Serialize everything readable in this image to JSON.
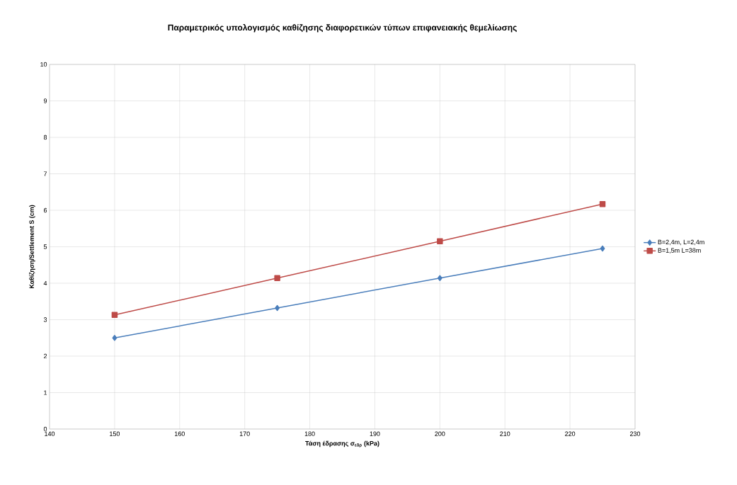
{
  "chart_data": {
    "type": "line",
    "title": "Παραμετρικός υπολογισμός καθίζησης διαφορετικών τύπων επιφανειακής θεμελίωσης",
    "xlabel": "Τάση έδρασης σ$_{εδρ}$ (kPa)",
    "ylabel": "Καθίζηση/Settlement S (cm)",
    "x": [
      150,
      175,
      200,
      225
    ],
    "series": [
      {
        "name": "B=2,4m, L=2,4m",
        "color": "#4a7ebb",
        "marker": "diamond",
        "values": [
          2.5,
          3.32,
          4.14,
          4.95
        ]
      },
      {
        "name": "B=1,5m L=38m",
        "color": "#be4b48",
        "marker": "square",
        "values": [
          3.13,
          4.14,
          5.15,
          6.17
        ]
      }
    ],
    "xlim": [
      140,
      230
    ],
    "xticks": [
      140,
      150,
      160,
      170,
      180,
      190,
      200,
      210,
      220,
      230
    ],
    "ylim": [
      0,
      10
    ],
    "yticks": [
      0,
      1,
      2,
      3,
      4,
      5,
      6,
      7,
      8,
      9,
      10
    ],
    "grid": true,
    "legend": "right",
    "line_style": "solid"
  }
}
